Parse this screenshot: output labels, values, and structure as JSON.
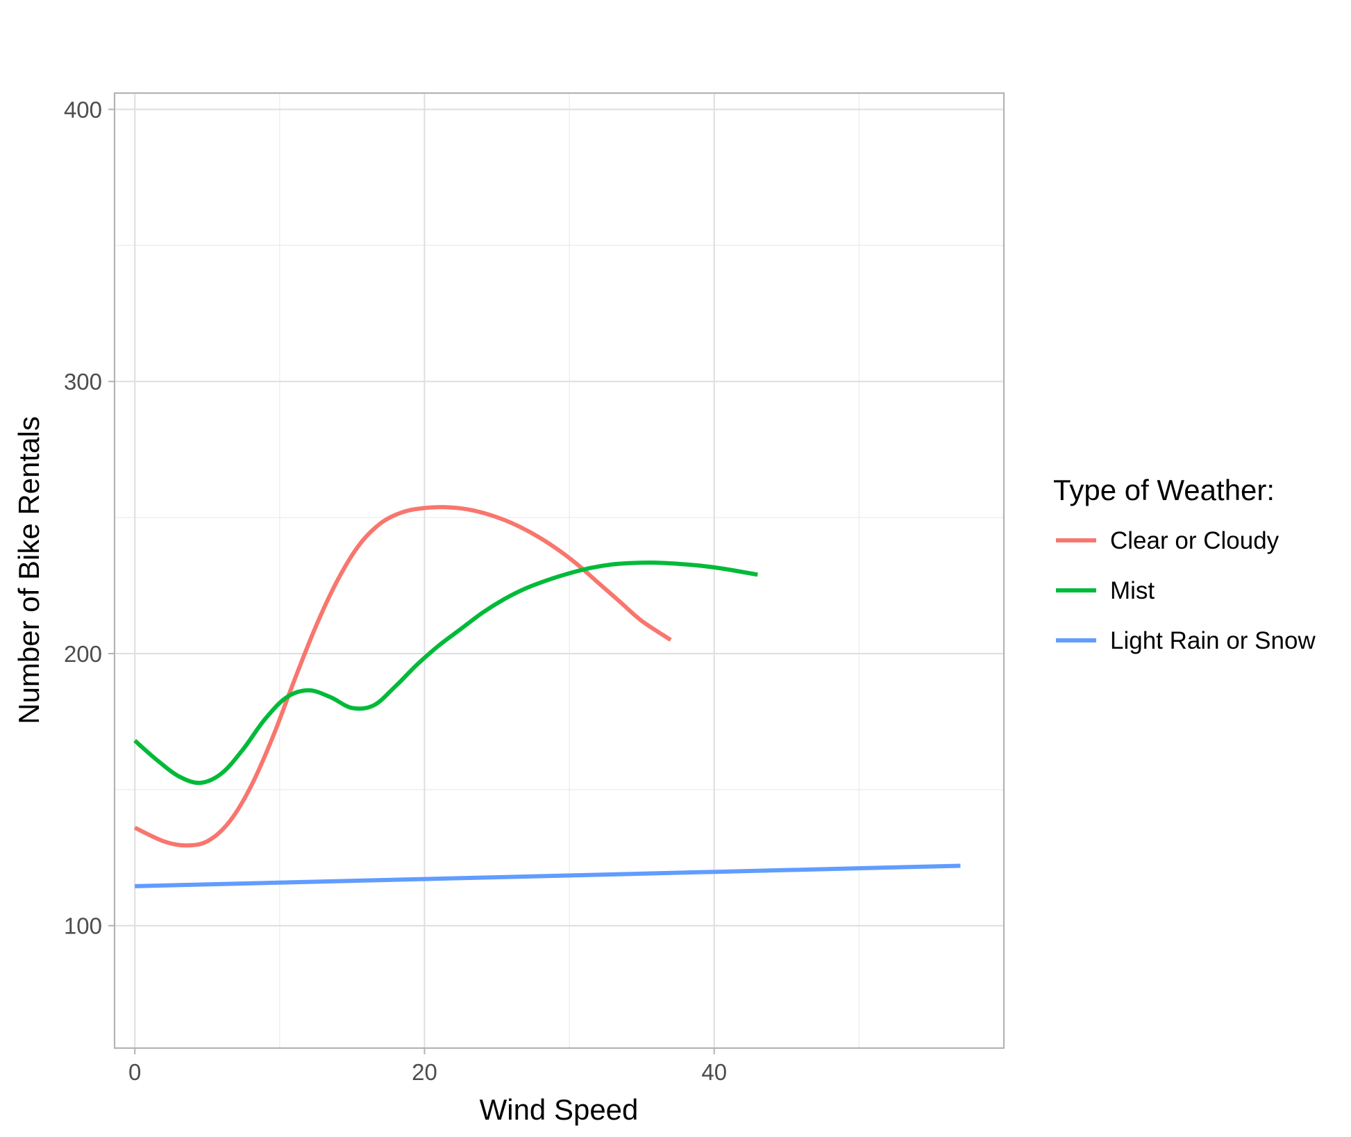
{
  "chart_data": {
    "type": "line",
    "title": "",
    "xlabel": "Wind Speed",
    "ylabel": "Number of Bike Rentals",
    "xlim": [
      -1.4,
      60
    ],
    "ylim": [
      55,
      406
    ],
    "x_ticks": [
      0,
      20,
      40
    ],
    "y_ticks": [
      100,
      200,
      300,
      400
    ],
    "x_tick_labels": [
      "0",
      "20",
      "40"
    ],
    "y_tick_labels": [
      "100",
      "200",
      "300",
      "400"
    ],
    "x_minor_gridlines": [
      10,
      30,
      50
    ],
    "y_minor_gridlines": [
      150,
      250,
      350
    ],
    "grid": true,
    "legend": {
      "title": "Type of Weather:",
      "position": "right"
    },
    "series": [
      {
        "name": "Clear or Cloudy",
        "color": "#F8766D",
        "x": [
          0,
          2,
          3.5,
          5,
          6.5,
          8,
          9.5,
          11,
          12.5,
          14,
          15.5,
          17,
          18.5,
          20,
          21.5,
          23,
          24.5,
          26,
          27.5,
          29,
          30.5,
          32,
          33.5,
          35,
          37
        ],
        "y": [
          136,
          131,
          129.5,
          131,
          138,
          151,
          169,
          190,
          210,
          227,
          240,
          248,
          252,
          253.5,
          253.8,
          253,
          251,
          248,
          244,
          239,
          233,
          226,
          219,
          212,
          205
        ]
      },
      {
        "name": "Mist",
        "color": "#00BA38",
        "x": [
          0,
          1.5,
          3,
          4.5,
          6,
          7.5,
          9,
          10.5,
          12,
          13.5,
          15,
          16.5,
          18,
          19.5,
          21,
          22.5,
          24,
          25.5,
          27,
          28.5,
          30,
          31.5,
          33,
          34.5,
          36,
          37.5,
          39,
          40.5,
          43
        ],
        "y": [
          168,
          161,
          155,
          152.5,
          156,
          165,
          176,
          184,
          186.5,
          184,
          180,
          181,
          188,
          196,
          203,
          209,
          215,
          220,
          224,
          227,
          229.5,
          231.5,
          232.8,
          233.3,
          233.4,
          233,
          232.3,
          231.3,
          229
        ]
      },
      {
        "name": "Light Rain or Snow",
        "color": "#619CFF",
        "x": [
          0,
          57
        ],
        "y": [
          114.5,
          122
        ]
      }
    ]
  }
}
